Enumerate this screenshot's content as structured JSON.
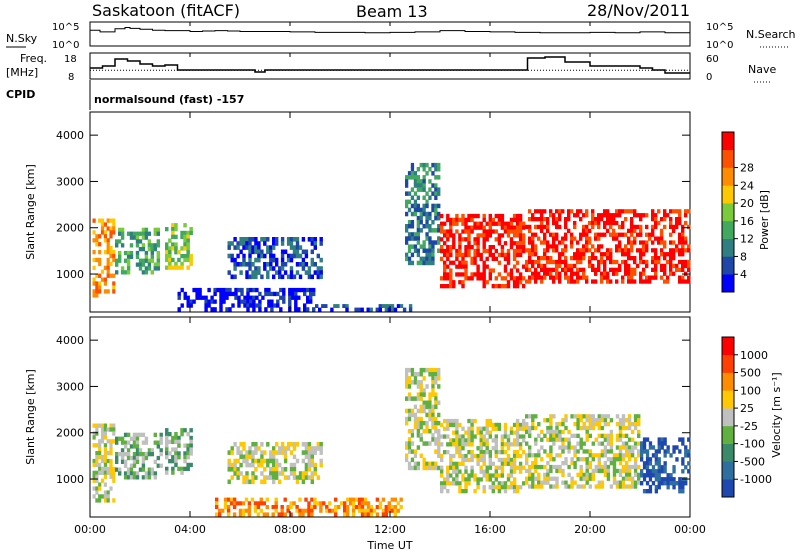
{
  "header": {
    "title": "Saskatoon (fitACF)",
    "beam": "Beam 13",
    "date": "28/Nov/2011"
  },
  "panels": {
    "nsky": {
      "label": "N.Sky",
      "left_ticks": [
        "10^5",
        "10^0"
      ],
      "right_label": "N.Search",
      "right_ticks": [
        "10^5",
        "10^0"
      ]
    },
    "freq": {
      "label_line1": "Freq.",
      "label_line2": "[MHz]",
      "left_ticks": [
        "18",
        "8"
      ],
      "right_label": "Nave",
      "right_ticks": [
        "60",
        "0"
      ]
    },
    "cpid": {
      "label": "CPID",
      "text": "normalsound (fast) -157"
    }
  },
  "chart_data": [
    {
      "type": "line",
      "name": "nsky",
      "x_range_hours": [
        0,
        24
      ],
      "series": [
        {
          "name": "N.Sky",
          "x": [
            0,
            0.4,
            1,
            1.4,
            1.6,
            2,
            2.5,
            3,
            3.5,
            4,
            4.5,
            5,
            5.5,
            6,
            7,
            8,
            9,
            10,
            11,
            12,
            13,
            14,
            15,
            16,
            17,
            18,
            19,
            20,
            21,
            22,
            23,
            24
          ],
          "values_log10": [
            3.6,
            3.2,
            3.9,
            4.2,
            4.0,
            3.8,
            3.6,
            3.5,
            3.5,
            3.3,
            3.4,
            3.5,
            3.4,
            3.3,
            3.3,
            3.2,
            3.1,
            3.1,
            3.0,
            3.1,
            3.2,
            3.5,
            3.3,
            3.2,
            3.1,
            3.0,
            3.0,
            3.1,
            3.0,
            3.2,
            3.0,
            3.3
          ]
        }
      ]
    },
    {
      "type": "line",
      "name": "freq",
      "x_range_hours": [
        0,
        24
      ],
      "yrange_mhz": [
        8,
        18
      ],
      "series": [
        {
          "name": "Freq",
          "x": [
            0,
            0.5,
            1,
            1.5,
            2,
            2.5,
            3,
            3.5,
            4,
            5,
            6,
            6.6,
            7,
            8,
            9,
            10,
            11,
            12,
            13,
            14,
            15,
            16,
            17,
            17.5,
            18.2,
            19,
            20,
            21,
            22,
            22.5,
            23,
            24
          ],
          "values": [
            12,
            13,
            16.5,
            15.5,
            14,
            13,
            13.5,
            11,
            11,
            11,
            11,
            10,
            11,
            11,
            11,
            11,
            11,
            11,
            11,
            11,
            11,
            11,
            11,
            17,
            17.5,
            15,
            13,
            13,
            12,
            11,
            9.5,
            9.5
          ]
        },
        {
          "name": "Nave",
          "x": [
            0,
            2,
            4,
            8,
            12,
            16,
            20,
            24
          ],
          "values": [
            22,
            22,
            22,
            22,
            22,
            22,
            22,
            22
          ]
        }
      ]
    },
    {
      "type": "heatmap",
      "name": "power",
      "xlabel": "",
      "ylabel": "Slant Range [km]",
      "x_ticks": [
        "00:00",
        "04:00",
        "08:00",
        "12:00",
        "16:00",
        "20:00",
        "00:00"
      ],
      "x_range_hours": [
        0,
        24
      ],
      "y_ticks": [
        1000,
        2000,
        3000,
        4000
      ],
      "ylim_km": [
        180,
        4500
      ],
      "colorbar": {
        "label": "Power [dB]",
        "ticks": [
          4,
          8,
          12,
          16,
          20,
          24,
          28
        ],
        "colors": [
          "#0000ff",
          "#1f47a8",
          "#2f7e82",
          "#41a860",
          "#7acb3c",
          "#ffc800",
          "#ff8c00",
          "#ff5000",
          "#ff0000"
        ]
      },
      "regions": [
        {
          "t": [
            0.1,
            1.0
          ],
          "r": [
            500,
            2200
          ],
          "level": 6
        },
        {
          "t": [
            1.0,
            2.9
          ],
          "r": [
            1000,
            2000
          ],
          "level": 3
        },
        {
          "t": [
            3.0,
            4.1
          ],
          "r": [
            1100,
            2100
          ],
          "level": 4
        },
        {
          "t": [
            5.5,
            9.3
          ],
          "r": [
            900,
            1800
          ],
          "level": 1
        },
        {
          "t": [
            3.5,
            9.0
          ],
          "r": [
            200,
            700
          ],
          "level": 0
        },
        {
          "t": [
            9.0,
            13.0
          ],
          "r": [
            200,
            350
          ],
          "level": 1
        },
        {
          "t": [
            12.6,
            14.0
          ],
          "r": [
            1200,
            3400
          ],
          "level": 2
        },
        {
          "t": [
            14.0,
            17.4
          ],
          "r": [
            700,
            2300
          ],
          "level": 8
        },
        {
          "t": [
            17.4,
            24.0
          ],
          "r": [
            800,
            2400
          ],
          "level": 8
        }
      ]
    },
    {
      "type": "heatmap",
      "name": "velocity",
      "xlabel": "Time UT",
      "ylabel": "Slant Range [km]",
      "x_ticks": [
        "00:00",
        "04:00",
        "08:00",
        "12:00",
        "16:00",
        "20:00",
        "00:00"
      ],
      "x_range_hours": [
        0,
        24
      ],
      "y_ticks": [
        1000,
        2000,
        3000,
        4000
      ],
      "ylim_km": [
        180,
        4500
      ],
      "colorbar": {
        "label": "Velocity [m s⁻¹]",
        "ticks": [
          1000,
          500,
          100,
          25,
          -25,
          -100,
          -500,
          -1000
        ],
        "colors": [
          "#1f47b0",
          "#2f6fa0",
          "#3a8a6a",
          "#60b040",
          "#c0c0c0",
          "#ffc800",
          "#ff8c00",
          "#ff4000",
          "#ff0000"
        ]
      },
      "regions": [
        {
          "t": [
            0.1,
            1.0
          ],
          "r": [
            500,
            2200
          ],
          "level": 4
        },
        {
          "t": [
            1.0,
            2.9
          ],
          "r": [
            1000,
            2000
          ],
          "level": 3
        },
        {
          "t": [
            3.0,
            4.1
          ],
          "r": [
            1100,
            2100
          ],
          "level": 3
        },
        {
          "t": [
            5.5,
            9.3
          ],
          "r": [
            900,
            1800
          ],
          "level": 4
        },
        {
          "t": [
            5.0,
            12.5
          ],
          "r": [
            200,
            600
          ],
          "level": 6
        },
        {
          "t": [
            12.6,
            14.0
          ],
          "r": [
            1200,
            3400
          ],
          "level": 4
        },
        {
          "t": [
            14.0,
            17.4
          ],
          "r": [
            700,
            2300
          ],
          "level": 4
        },
        {
          "t": [
            17.4,
            22.0
          ],
          "r": [
            800,
            2400
          ],
          "level": 4
        },
        {
          "t": [
            22.0,
            24.0
          ],
          "r": [
            700,
            1900
          ],
          "level": 0
        }
      ]
    }
  ]
}
